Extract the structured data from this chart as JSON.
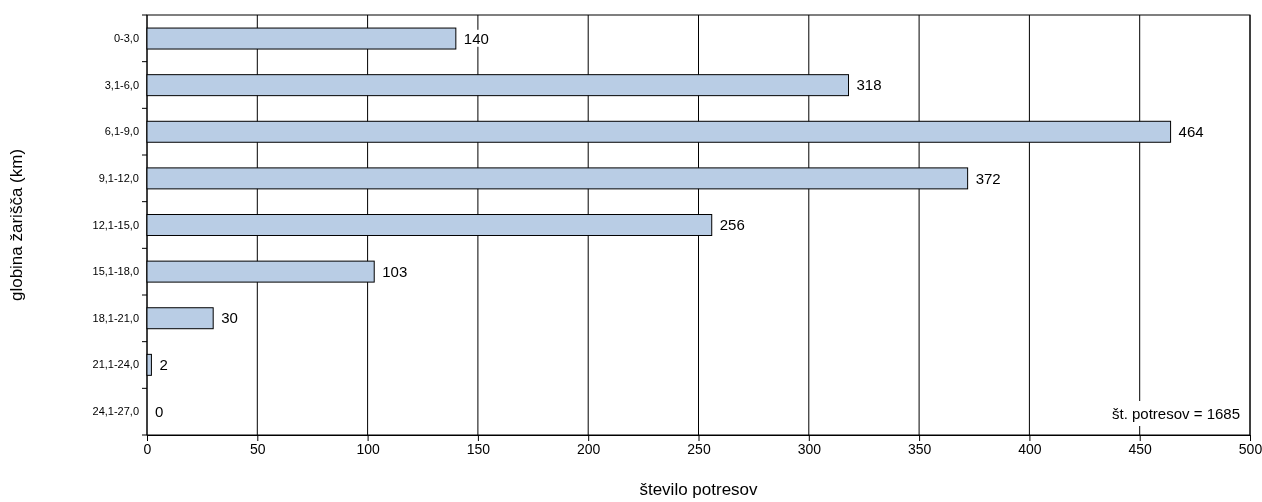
{
  "chart_data": {
    "type": "bar",
    "orientation": "horizontal",
    "xlabel": "število potresov",
    "ylabel": "globina žarišča (km)",
    "categories": [
      "0-3,0",
      "3,1-6,0",
      "6,1-9,0",
      "9,1-12,0",
      "12,1-15,0",
      "15,1-18,0",
      "18,1-21,0",
      "21,1-24,0",
      "24,1-27,0"
    ],
    "values": [
      140,
      318,
      464,
      372,
      256,
      103,
      30,
      2,
      0
    ],
    "color": "#b9cde5",
    "xlim": [
      0,
      500
    ],
    "xticks": [
      0,
      50,
      100,
      150,
      200,
      250,
      300,
      350,
      400,
      450,
      500
    ],
    "grid": "x",
    "data_labels": true,
    "annotations": [
      "št. potresov = 1685"
    ]
  }
}
